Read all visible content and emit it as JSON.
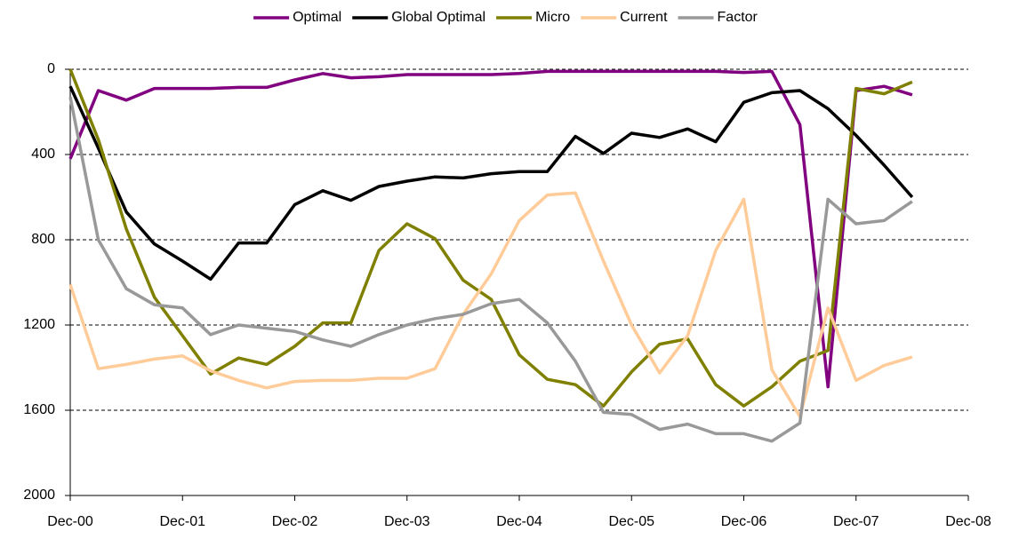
{
  "chart_data": {
    "type": "line",
    "legend": "top",
    "y_reversed": true,
    "grid": true,
    "ylim": [
      0,
      2000
    ],
    "yticks": [
      0,
      400,
      800,
      1200,
      1600,
      2000
    ],
    "xlim": [
      "Dec-00",
      "Dec-08"
    ],
    "xticks": [
      "Dec-00",
      "Dec-01",
      "Dec-02",
      "Dec-03",
      "Dec-04",
      "Dec-05",
      "Dec-06",
      "Dec-07",
      "Dec-08"
    ],
    "x": [
      "Dec-00",
      "Mar-01",
      "Jun-01",
      "Sep-01",
      "Dec-01",
      "Mar-02",
      "Jun-02",
      "Sep-02",
      "Dec-02",
      "Mar-03",
      "Jun-03",
      "Sep-03",
      "Dec-03",
      "Mar-04",
      "Jun-04",
      "Sep-04",
      "Dec-04",
      "Mar-05",
      "Jun-05",
      "Sep-05",
      "Dec-05",
      "Mar-06",
      "Jun-06",
      "Sep-06",
      "Dec-06",
      "Mar-07",
      "Jun-07",
      "Sep-07",
      "Dec-07",
      "Mar-08",
      "Jun-08"
    ],
    "series": [
      {
        "name": "Optimal",
        "color": "#800080",
        "values": [
          420,
          100,
          145,
          90,
          90,
          90,
          85,
          85,
          50,
          20,
          40,
          35,
          25,
          25,
          25,
          25,
          20,
          10,
          10,
          10,
          10,
          10,
          10,
          10,
          15,
          10,
          260,
          1490,
          100,
          80,
          120
        ]
      },
      {
        "name": "Global Optimal",
        "color": "#000000",
        "values": [
          80,
          370,
          670,
          820,
          900,
          985,
          815,
          815,
          635,
          570,
          615,
          550,
          525,
          505,
          510,
          490,
          480,
          480,
          315,
          395,
          300,
          320,
          280,
          340,
          155,
          110,
          100,
          185,
          310,
          450,
          600
        ]
      },
      {
        "name": "Micro",
        "color": "#808000",
        "values": [
          0,
          330,
          750,
          1070,
          1250,
          1430,
          1355,
          1385,
          1300,
          1190,
          1190,
          850,
          725,
          795,
          990,
          1080,
          1340,
          1455,
          1480,
          1580,
          1420,
          1290,
          1265,
          1480,
          1580,
          1490,
          1370,
          1320,
          90,
          115,
          60
        ]
      },
      {
        "name": "Current",
        "color": "#FFCC99",
        "values": [
          1010,
          1405,
          1385,
          1360,
          1345,
          1415,
          1460,
          1495,
          1465,
          1460,
          1460,
          1450,
          1450,
          1405,
          1150,
          960,
          710,
          590,
          580,
          900,
          1200,
          1425,
          1250,
          850,
          610,
          1410,
          1630,
          1120,
          1460,
          1390,
          1350
        ]
      },
      {
        "name": "Factor",
        "color": "#999999",
        "values": [
          130,
          800,
          1030,
          1105,
          1120,
          1245,
          1200,
          1215,
          1230,
          1270,
          1300,
          1245,
          1200,
          1170,
          1150,
          1100,
          1080,
          1190,
          1370,
          1610,
          1620,
          1690,
          1665,
          1710,
          1710,
          1745,
          1660,
          610,
          725,
          710,
          620
        ]
      }
    ]
  }
}
